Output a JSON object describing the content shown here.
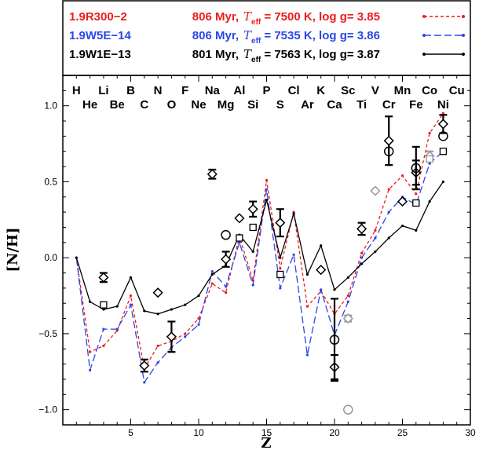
{
  "chart_data": {
    "type": "line",
    "xlabel": "Z",
    "ylabel": "[N/H]",
    "xlim": [
      0,
      30
    ],
    "ylim": [
      -1.1,
      1.2
    ],
    "xticks": [
      "5",
      "10",
      "15",
      "20",
      "25",
      "30"
    ],
    "yticks": [
      "1.0",
      "0.5",
      "0.0",
      "−0.5",
      "−1.0"
    ],
    "elements_row1": [
      {
        "z": 1,
        "s": "H"
      },
      {
        "z": 3,
        "s": "Li"
      },
      {
        "z": 5,
        "s": "B"
      },
      {
        "z": 7,
        "s": "N"
      },
      {
        "z": 9,
        "s": "F"
      },
      {
        "z": 11,
        "s": "Na"
      },
      {
        "z": 13,
        "s": "Al"
      },
      {
        "z": 15,
        "s": "P"
      },
      {
        "z": 17,
        "s": "Cl"
      },
      {
        "z": 19,
        "s": "K"
      },
      {
        "z": 21,
        "s": "Sc"
      },
      {
        "z": 23,
        "s": "V"
      },
      {
        "z": 25,
        "s": "Mn"
      },
      {
        "z": 27,
        "s": "Co"
      },
      {
        "z": 29,
        "s": "Cu"
      }
    ],
    "elements_row2": [
      {
        "z": 2,
        "s": "He"
      },
      {
        "z": 4,
        "s": "Be"
      },
      {
        "z": 6,
        "s": "C"
      },
      {
        "z": 8,
        "s": "O"
      },
      {
        "z": 10,
        "s": "Ne"
      },
      {
        "z": 12,
        "s": "Mg"
      },
      {
        "z": 14,
        "s": "Si"
      },
      {
        "z": 16,
        "s": "S"
      },
      {
        "z": 18,
        "s": "Ar"
      },
      {
        "z": 20,
        "s": "Ca"
      },
      {
        "z": 22,
        "s": "Ti"
      },
      {
        "z": 24,
        "s": "Cr"
      },
      {
        "z": 26,
        "s": "Fe"
      },
      {
        "z": 28,
        "s": "Ni"
      }
    ],
    "series": [
      {
        "name": "1.9R300−2",
        "age": "806 Myr,",
        "teff_label": "= 7500 K, log g= 3.85",
        "color": "#ee1c1c",
        "dash": "4,3",
        "x": [
          1,
          2,
          3,
          4,
          5,
          6,
          7,
          8,
          9,
          10,
          11,
          12,
          13,
          14,
          15,
          16,
          17,
          18,
          19,
          20,
          21,
          22,
          23,
          24,
          25,
          26,
          27,
          28
        ],
        "y": [
          0,
          -0.62,
          -0.58,
          -0.48,
          -0.25,
          -0.73,
          -0.58,
          -0.55,
          -0.5,
          -0.4,
          -0.17,
          -0.23,
          0.14,
          -0.15,
          0.51,
          -0.07,
          0.3,
          -0.32,
          -0.22,
          -0.37,
          -0.25,
          0.03,
          0.18,
          0.45,
          0.54,
          0.42,
          0.82,
          0.95
        ]
      },
      {
        "name": "1.9W5E−14",
        "age": "806 Myr,",
        "teff_label": "= 7535 K, log g= 3.86",
        "color": "#2c46e6",
        "dash": "9,4",
        "x": [
          1,
          2,
          3,
          4,
          5,
          6,
          7,
          8,
          9,
          10,
          11,
          12,
          13,
          14,
          15,
          16,
          17,
          18,
          19,
          20,
          21,
          22,
          23,
          24,
          25,
          26,
          27,
          28
        ],
        "y": [
          0,
          -0.74,
          -0.47,
          -0.47,
          -0.31,
          -0.82,
          -0.69,
          -0.59,
          -0.52,
          -0.44,
          -0.09,
          -0.19,
          0.1,
          -0.18,
          0.45,
          -0.2,
          0.02,
          -0.64,
          -0.21,
          -0.51,
          -0.29,
          0.0,
          0.13,
          0.3,
          0.4,
          0.35,
          0.62,
          0.7
        ]
      },
      {
        "name": "1.9W1E−13",
        "age": "801 Myr,",
        "teff_label": "= 7563 K, log g= 3.87",
        "color": "#000000",
        "dash": "",
        "x": [
          1,
          2,
          3,
          4,
          5,
          6,
          7,
          8,
          9,
          10,
          11,
          12,
          13,
          14,
          15,
          16,
          17,
          18,
          19,
          20,
          21,
          22,
          23,
          24,
          25,
          26,
          27,
          28
        ],
        "y": [
          0,
          -0.29,
          -0.34,
          -0.32,
          -0.13,
          -0.35,
          -0.37,
          -0.34,
          -0.31,
          -0.25,
          -0.11,
          -0.05,
          0.15,
          0.04,
          0.38,
          0.0,
          0.29,
          -0.11,
          0.08,
          -0.21,
          -0.13,
          -0.04,
          0.04,
          0.13,
          0.21,
          0.18,
          0.37,
          0.5
        ]
      }
    ],
    "observations": {
      "diamonds": [
        {
          "x": 3,
          "y": -0.13,
          "err": 0.03,
          "color": "#000000"
        },
        {
          "x": 6,
          "y": -0.71,
          "err": 0.04,
          "color": "#000000"
        },
        {
          "x": 7,
          "y": -0.23,
          "err": 0,
          "color": "#000000"
        },
        {
          "x": 8,
          "y": -0.52,
          "err": 0.1,
          "color": "#000000"
        },
        {
          "x": 11,
          "y": 0.55,
          "err": 0.03,
          "color": "#000000"
        },
        {
          "x": 12,
          "y": -0.01,
          "err": 0.05,
          "color": "#000000"
        },
        {
          "x": 13,
          "y": 0.26,
          "err": 0,
          "color": "#000000"
        },
        {
          "x": 14,
          "y": 0.32,
          "err": 0.05,
          "color": "#000000"
        },
        {
          "x": 16,
          "y": 0.23,
          "err": 0.09,
          "color": "#000000"
        },
        {
          "x": 19,
          "y": -0.08,
          "err": 0,
          "color": "#000000"
        },
        {
          "x": 20,
          "y": -0.72,
          "err": 0.08,
          "color": "#000000"
        },
        {
          "x": 21,
          "y": -0.4,
          "err": 0.02,
          "color": "#999999"
        },
        {
          "x": 22,
          "y": 0.19,
          "err": 0.04,
          "color": "#000000"
        },
        {
          "x": 23,
          "y": 0.44,
          "err": 0,
          "color": "#999999"
        },
        {
          "x": 24,
          "y": 0.77,
          "err": 0.16,
          "color": "#000000"
        },
        {
          "x": 25,
          "y": 0.37,
          "err": 0,
          "color": "#000000"
        },
        {
          "x": 26,
          "y": 0.56,
          "err": 0.08,
          "color": "#000000"
        },
        {
          "x": 27,
          "y": 0.67,
          "err": 0.03,
          "color": "#999999"
        },
        {
          "x": 28,
          "y": 0.88,
          "err": 0.06,
          "color": "#000000"
        }
      ],
      "circles": [
        {
          "x": 12,
          "y": 0.15,
          "color": "#000000"
        },
        {
          "x": 20,
          "y": -0.54,
          "err": 0.27,
          "color": "#000000"
        },
        {
          "x": 21,
          "y": -1.0,
          "color": "#999999"
        },
        {
          "x": 24,
          "y": 0.7,
          "color": "#000000"
        },
        {
          "x": 26,
          "y": 0.59,
          "err": 0.14,
          "color": "#000000"
        },
        {
          "x": 28,
          "y": 0.8,
          "color": "#000000"
        }
      ],
      "squares": [
        {
          "x": 3,
          "y": -0.31,
          "color": "#000000"
        },
        {
          "x": 13,
          "y": 0.13,
          "color": "#000000"
        },
        {
          "x": 14,
          "y": 0.2,
          "color": "#000000"
        },
        {
          "x": 16,
          "y": -0.11,
          "color": "#000000"
        },
        {
          "x": 26,
          "y": 0.36,
          "color": "#000000"
        },
        {
          "x": 27,
          "y": 0.65,
          "color": "#999999"
        },
        {
          "x": 28,
          "y": 0.7,
          "color": "#000000"
        }
      ]
    }
  }
}
